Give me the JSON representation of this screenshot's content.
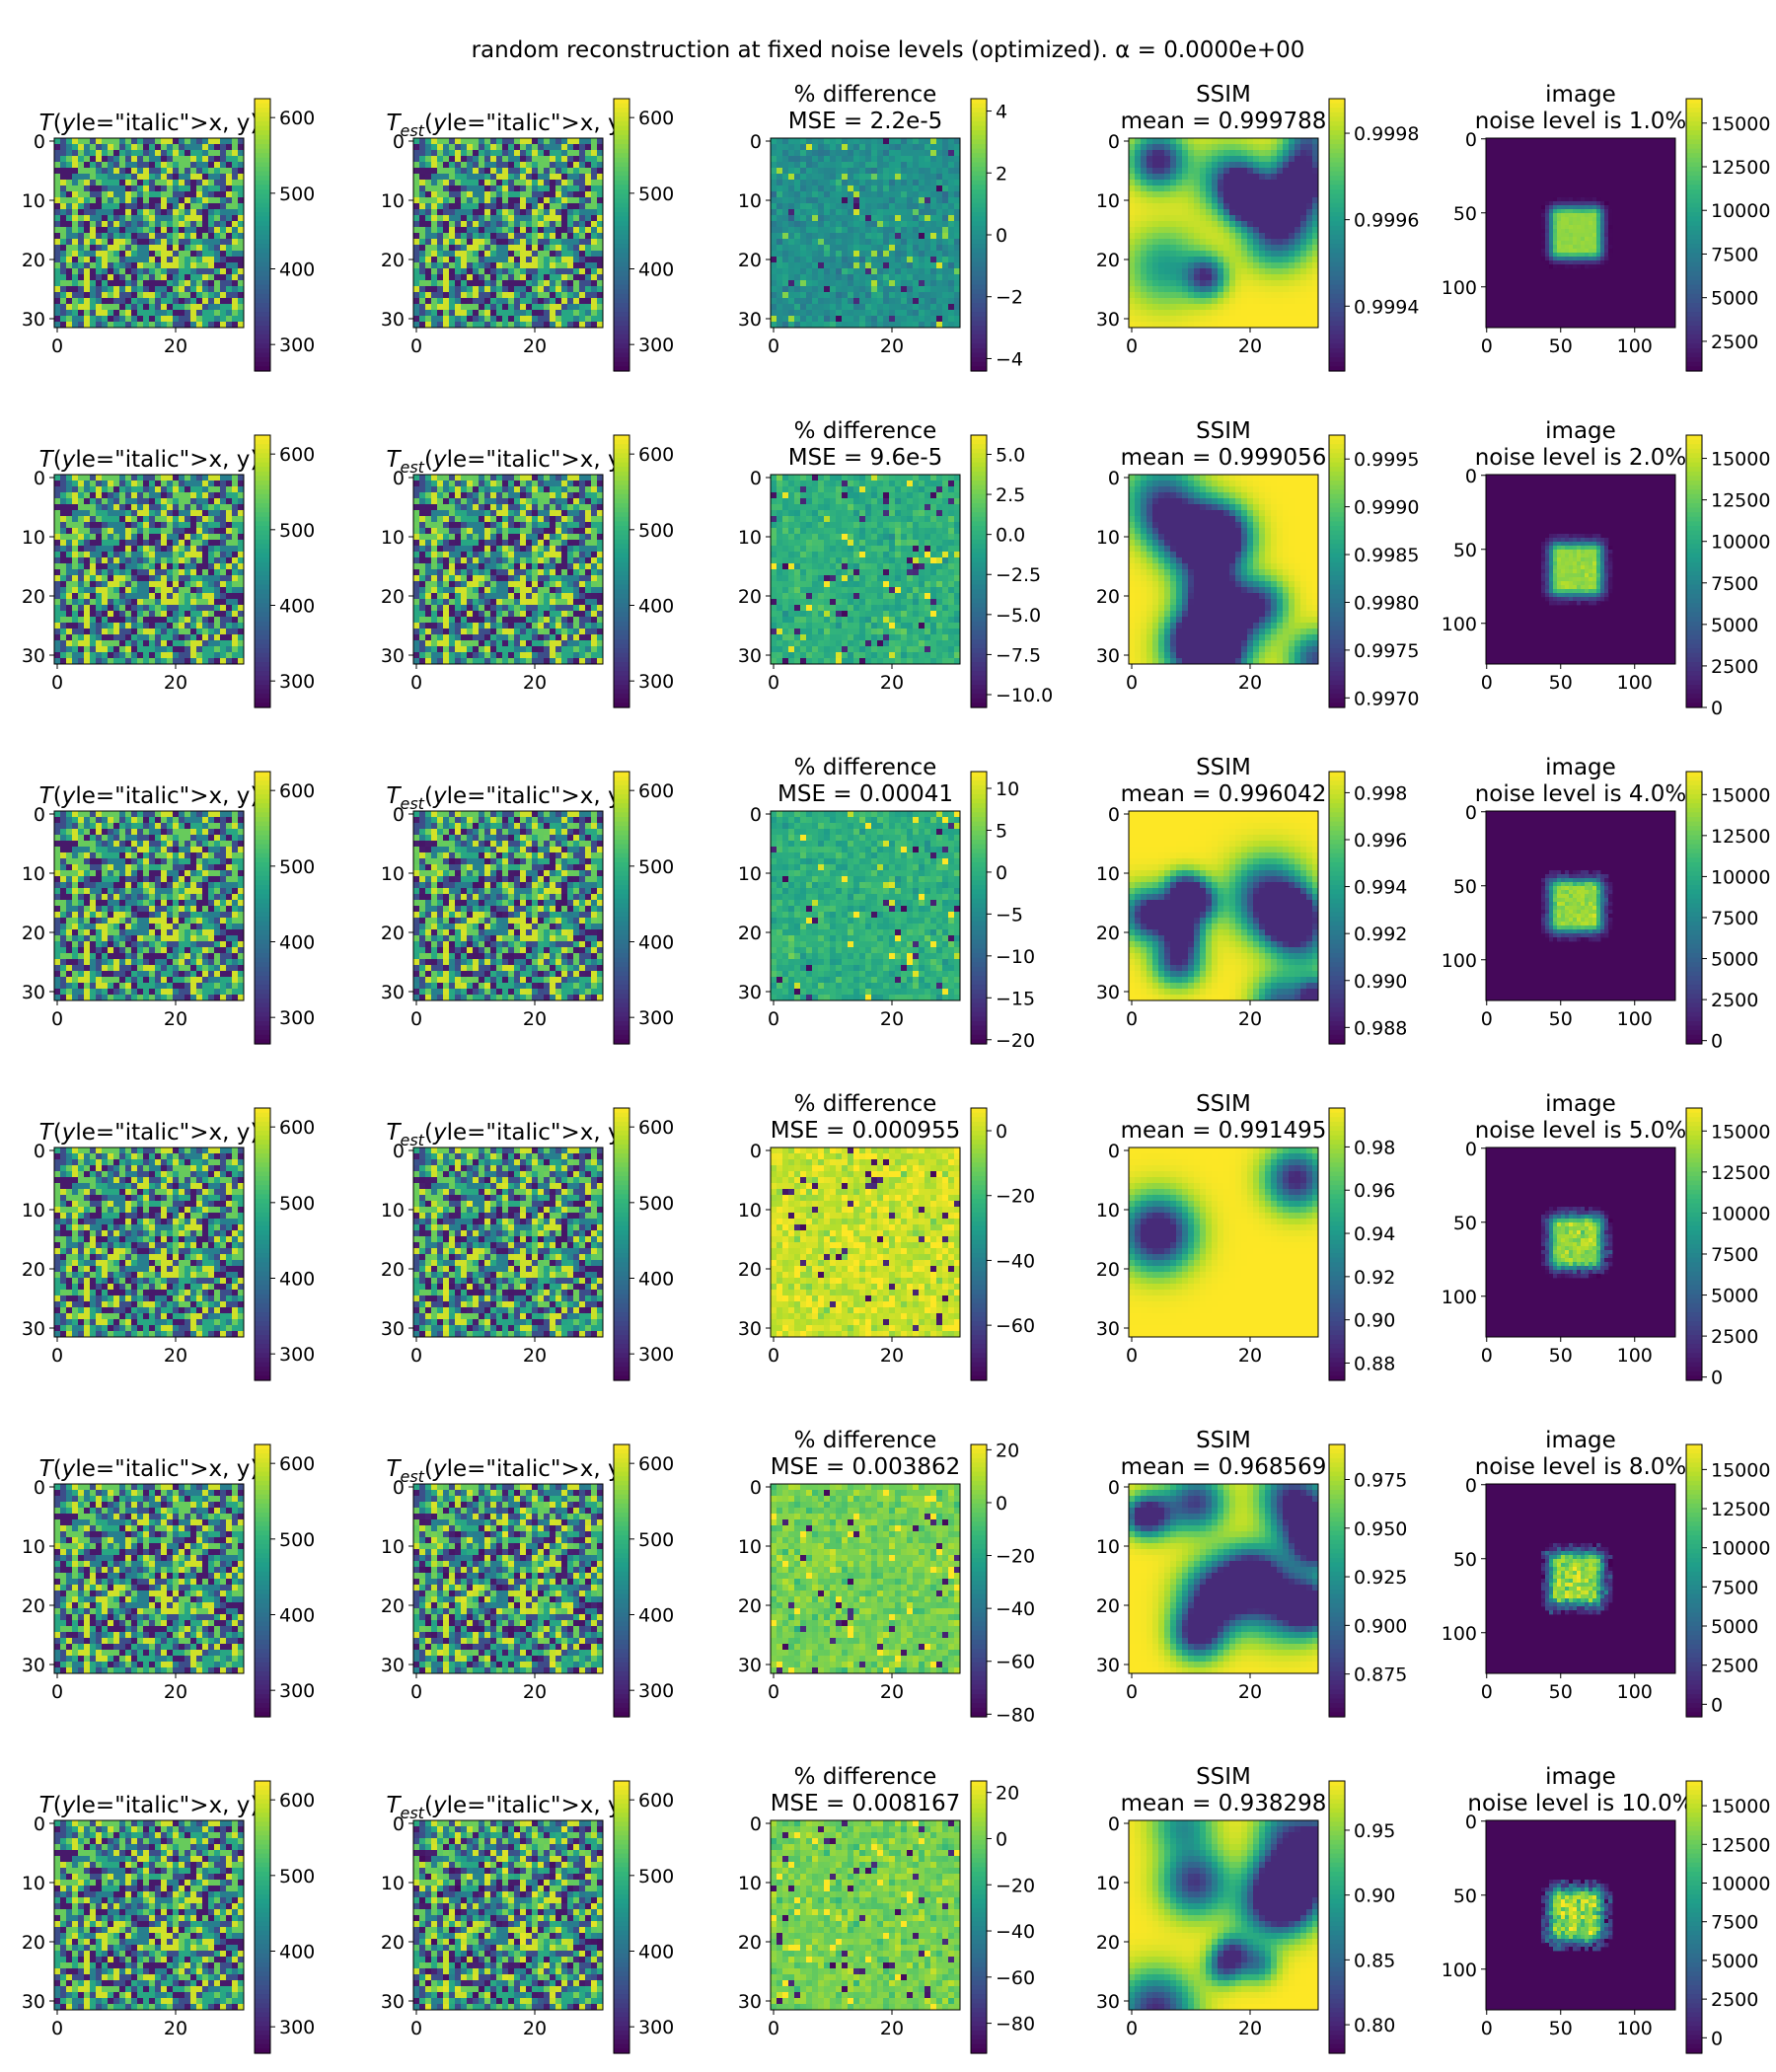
{
  "title": "random reconstruction at fixed noise levels (optimized). α = 0.0000e+00",
  "chart_data": {
    "type": "heatmap",
    "title": "random reconstruction at fixed noise levels (optimized). α = 0.0000e+00",
    "column_titles": {
      "true": {
        "main": "T",
        "sub": "",
        "args": "(x, y)"
      },
      "estimate": {
        "main": "T",
        "sub": "est",
        "args": "(x, y)"
      },
      "difference": "% difference",
      "ssim": "SSIM",
      "image": "image"
    },
    "grid_ticks": [
      "0",
      "10",
      "20",
      "30"
    ],
    "grid_xticks": [
      "0",
      "20"
    ],
    "image_ticks": [
      "0",
      "50",
      "100"
    ],
    "image_xticks": [
      "0",
      "50",
      "100"
    ],
    "temperature_colorbar": {
      "ticks": [
        300,
        400,
        500,
        600
      ],
      "range": [
        265,
        625
      ]
    },
    "colormap": "viridis",
    "rows": [
      {
        "noise_label": "noise level is 1.0%",
        "noise_level_percent": 1.0,
        "mse_label": "MSE = 2.2e-5",
        "ssim_label": "mean = 0.999788",
        "diff_colorbar": {
          "ticks": [
            4,
            2,
            0,
            -2,
            -4
          ],
          "tick_labels": [
            "4",
            "2",
            "0",
            "−2",
            "−4"
          ],
          "range": [
            -4.4,
            4.4
          ]
        },
        "ssim_colorbar": {
          "ticks": [
            0.9998,
            0.9996,
            0.9994
          ],
          "tick_labels": [
            "0.9998",
            "0.9996",
            "0.9994"
          ],
          "range": [
            0.99925,
            0.99988
          ]
        },
        "image_colorbar": {
          "ticks": [
            15000,
            12500,
            10000,
            7500,
            5000,
            2500
          ],
          "tick_labels": [
            "15000",
            "12500",
            "10000",
            "7500",
            "5000",
            "2500"
          ],
          "range": [
            800,
            16400
          ]
        }
      },
      {
        "noise_label": "noise level is 2.0%",
        "noise_level_percent": 2.0,
        "mse_label": "MSE = 9.6e-5",
        "ssim_label": "mean = 0.999056",
        "diff_colorbar": {
          "ticks": [
            5.0,
            2.5,
            0.0,
            -2.5,
            -5.0,
            -7.5,
            -10.0
          ],
          "tick_labels": [
            "5.0",
            "2.5",
            "0.0",
            "−2.5",
            "−5.0",
            "−7.5",
            "−10.0"
          ],
          "range": [
            -10.8,
            6.2
          ]
        },
        "ssim_colorbar": {
          "ticks": [
            0.9995,
            0.999,
            0.9985,
            0.998,
            0.9975,
            0.997
          ],
          "tick_labels": [
            "0.9995",
            "0.9990",
            "0.9985",
            "0.9980",
            "0.9975",
            "0.9970"
          ],
          "range": [
            0.9969,
            0.99975
          ]
        },
        "image_colorbar": {
          "ticks": [
            15000,
            12500,
            10000,
            7500,
            5000,
            2500,
            0
          ],
          "tick_labels": [
            "15000",
            "12500",
            "10000",
            "7500",
            "5000",
            "2500",
            "0"
          ],
          "range": [
            0,
            16400
          ]
        }
      },
      {
        "noise_label": "noise level is 4.0%",
        "noise_level_percent": 4.0,
        "mse_label": "MSE = 0.00041",
        "ssim_label": "mean = 0.996042",
        "diff_colorbar": {
          "ticks": [
            10,
            5,
            0,
            -5,
            -10,
            -15,
            -20
          ],
          "tick_labels": [
            "10",
            "5",
            "0",
            "−5",
            "−10",
            "−15",
            "−20"
          ],
          "range": [
            -20.5,
            12.0
          ]
        },
        "ssim_colorbar": {
          "ticks": [
            0.998,
            0.996,
            0.994,
            0.992,
            0.99,
            0.988
          ],
          "tick_labels": [
            "0.998",
            "0.996",
            "0.994",
            "0.992",
            "0.990",
            "0.988"
          ],
          "range": [
            0.9873,
            0.9989
          ]
        },
        "image_colorbar": {
          "ticks": [
            15000,
            12500,
            10000,
            7500,
            5000,
            2500,
            0
          ],
          "tick_labels": [
            "15000",
            "12500",
            "10000",
            "7500",
            "5000",
            "2500",
            "0"
          ],
          "range": [
            -200,
            16400
          ]
        }
      },
      {
        "noise_label": "noise level is 5.0%",
        "noise_level_percent": 5.0,
        "mse_label": "MSE = 0.000955",
        "ssim_label": "mean = 0.991495",
        "diff_colorbar": {
          "ticks": [
            0,
            -20,
            -40,
            -60
          ],
          "tick_labels": [
            "0",
            "−20",
            "−40",
            "−60"
          ],
          "range": [
            -77,
            7
          ]
        },
        "ssim_colorbar": {
          "ticks": [
            0.98,
            0.96,
            0.94,
            0.92,
            0.9,
            0.88
          ],
          "tick_labels": [
            "0.98",
            "0.96",
            "0.94",
            "0.92",
            "0.90",
            "0.88"
          ],
          "range": [
            0.872,
            0.998
          ]
        },
        "image_colorbar": {
          "ticks": [
            15000,
            12500,
            10000,
            7500,
            5000,
            2500,
            0
          ],
          "tick_labels": [
            "15000",
            "12500",
            "10000",
            "7500",
            "5000",
            "2500",
            "0"
          ],
          "range": [
            -200,
            16400
          ]
        }
      },
      {
        "noise_label": "noise level is 8.0%",
        "noise_level_percent": 8.0,
        "mse_label": "MSE = 0.003862",
        "ssim_label": "mean = 0.968569",
        "diff_colorbar": {
          "ticks": [
            20,
            0,
            -20,
            -40,
            -60,
            -80
          ],
          "tick_labels": [
            "20",
            "0",
            "−20",
            "−40",
            "−60",
            "−80"
          ],
          "range": [
            -81,
            22
          ]
        },
        "ssim_colorbar": {
          "ticks": [
            0.975,
            0.95,
            0.925,
            0.9,
            0.875
          ],
          "tick_labels": [
            "0.975",
            "0.950",
            "0.925",
            "0.900",
            "0.875"
          ],
          "range": [
            0.853,
            0.993
          ]
        },
        "image_colorbar": {
          "ticks": [
            15000,
            12500,
            10000,
            7500,
            5000,
            2500,
            0
          ],
          "tick_labels": [
            "15000",
            "12500",
            "10000",
            "7500",
            "5000",
            "2500",
            "0"
          ],
          "range": [
            -800,
            16600
          ]
        }
      },
      {
        "noise_label": "noise level is 10.0%",
        "noise_level_percent": 10.0,
        "mse_label": "MSE = 0.008167",
        "ssim_label": "mean = 0.938298",
        "diff_colorbar": {
          "ticks": [
            20,
            0,
            -20,
            -40,
            -60,
            -80
          ],
          "tick_labels": [
            "20",
            "0",
            "−20",
            "−40",
            "−60",
            "−80"
          ],
          "range": [
            -93,
            25
          ]
        },
        "ssim_colorbar": {
          "ticks": [
            0.95,
            0.9,
            0.85,
            0.8
          ],
          "tick_labels": [
            "0.95",
            "0.90",
            "0.85",
            "0.80"
          ],
          "range": [
            0.778,
            0.988
          ]
        },
        "image_colorbar": {
          "ticks": [
            15000,
            12500,
            10000,
            7500,
            5000,
            2500,
            0
          ],
          "tick_labels": [
            "15000",
            "12500",
            "10000",
            "7500",
            "5000",
            "2500",
            "0"
          ],
          "range": [
            -1000,
            16600
          ]
        }
      }
    ]
  }
}
